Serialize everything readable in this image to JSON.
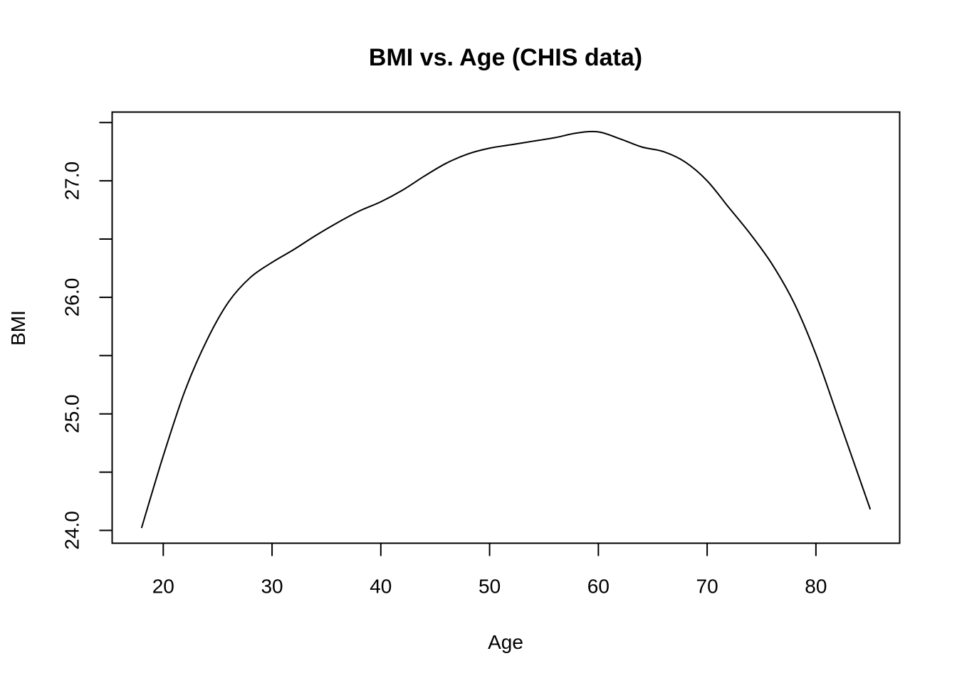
{
  "chart_data": {
    "type": "line",
    "title": "BMI vs. Age (CHIS data)",
    "xlabel": "Age",
    "ylabel": "BMI",
    "xlim": [
      15.3,
      87.7
    ],
    "ylim": [
      23.89,
      27.59
    ],
    "grid": false,
    "legend": "none",
    "x_ticks": [
      20,
      30,
      40,
      50,
      60,
      70,
      80
    ],
    "x_tick_labels": [
      "20",
      "30",
      "40",
      "50",
      "60",
      "70",
      "80"
    ],
    "y_ticks": [
      24.0,
      24.5,
      25.0,
      25.5,
      26.0,
      26.5,
      27.0,
      27.5
    ],
    "y_tick_labels": [
      "24.0",
      "",
      "25.0",
      "",
      "26.0",
      "",
      "27.0",
      ""
    ],
    "series": [
      {
        "color": "#000000",
        "x": [
          18,
          20,
          22,
          24,
          26,
          28,
          30,
          32,
          34,
          36,
          38,
          40,
          42,
          44,
          46,
          48,
          50,
          52,
          54,
          56,
          58,
          60,
          62,
          64,
          66,
          68,
          70,
          72,
          74,
          76,
          78,
          80,
          82,
          85
        ],
        "y": [
          24.02,
          24.64,
          25.2,
          25.63,
          25.96,
          26.17,
          26.3,
          26.41,
          26.53,
          26.64,
          26.74,
          26.82,
          26.92,
          27.04,
          27.15,
          27.23,
          27.28,
          27.31,
          27.34,
          27.37,
          27.41,
          27.42,
          27.36,
          27.29,
          27.25,
          27.16,
          27.0,
          26.77,
          26.54,
          26.28,
          25.95,
          25.51,
          24.98,
          24.18
        ]
      }
    ]
  }
}
